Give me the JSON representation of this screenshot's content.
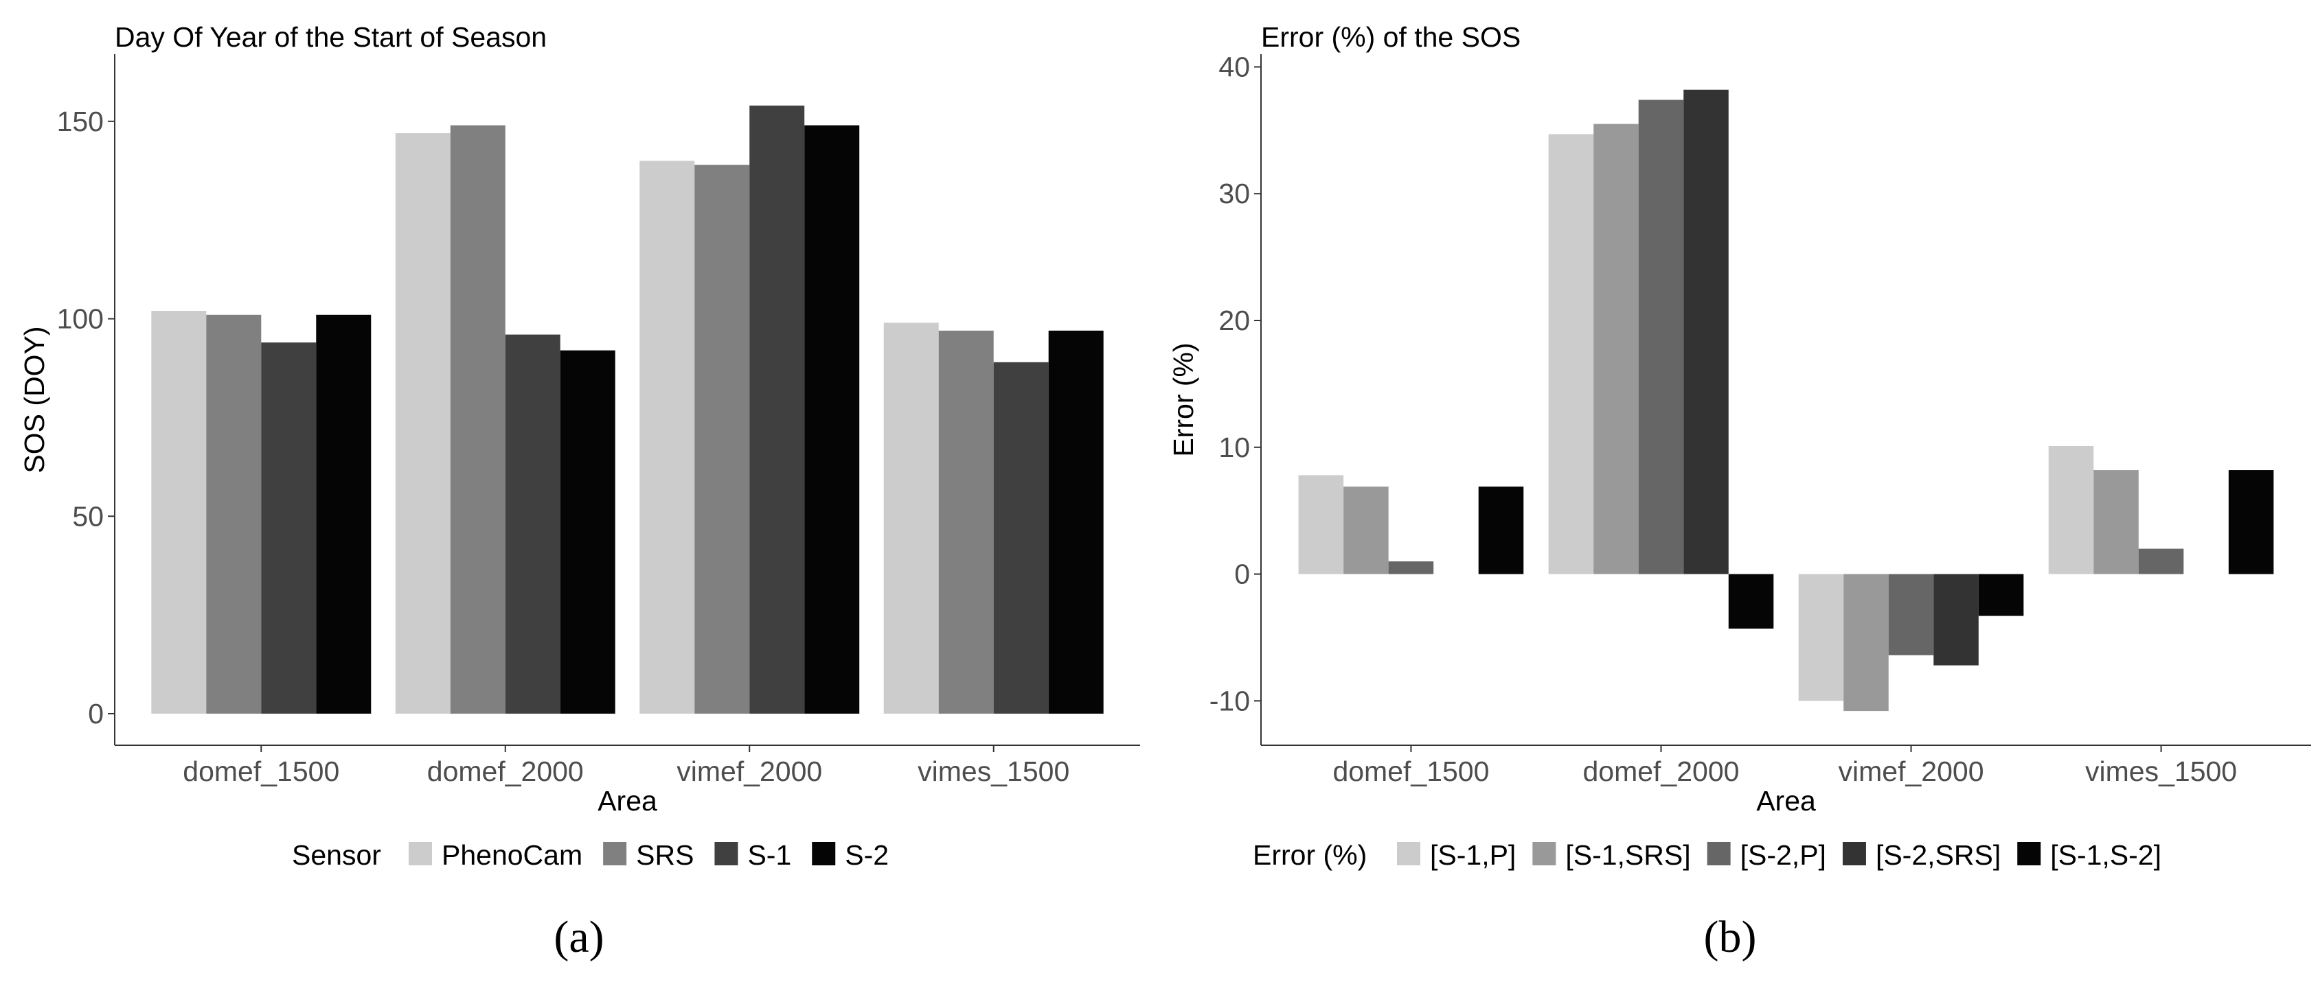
{
  "chart_data": [
    {
      "type": "bar",
      "title": "Day Of Year of the Start of Season",
      "xlabel": "Area",
      "ylabel": "SOS (DOY)",
      "categories": [
        "domef_1500",
        "domef_2000",
        "vimef_2000",
        "vimes_1500"
      ],
      "ylim": [
        -8,
        167
      ],
      "yticks": [
        0,
        50,
        100,
        150
      ],
      "yticklabels": [
        "0",
        "50",
        "100",
        "150"
      ],
      "grid": false,
      "legend_title": "Sensor",
      "legend_position": "bottom",
      "series": [
        {
          "name": "PhenoCam",
          "color": "#cccccc",
          "values": [
            102,
            147,
            140,
            99
          ]
        },
        {
          "name": "SRS",
          "color": "#808080",
          "values": [
            101,
            149,
            139,
            97
          ]
        },
        {
          "name": "S-1",
          "color": "#404040",
          "values": [
            94,
            96,
            154,
            89
          ]
        },
        {
          "name": "S-2",
          "color": "#050505",
          "values": [
            101,
            92,
            149,
            97
          ]
        }
      ],
      "caption": "(a)"
    },
    {
      "type": "bar",
      "title": "Error (%) of the SOS",
      "xlabel": "Area",
      "ylabel": "Error (%)",
      "categories": [
        "domef_1500",
        "domef_2000",
        "vimef_2000",
        "vimes_1500"
      ],
      "ylim": [
        -13.5,
        41
      ],
      "yticks": [
        -10,
        0,
        10,
        20,
        30,
        40
      ],
      "yticklabels": [
        "-10",
        "0",
        "10",
        "20",
        "30",
        "40"
      ],
      "grid": false,
      "legend_title": "Error (%)",
      "legend_position": "bottom",
      "series": [
        {
          "name": "[S-1,P]",
          "color": "#cccccc",
          "values": [
            7.8,
            34.7,
            -10.0,
            10.1
          ]
        },
        {
          "name": "[S-1,SRS]",
          "color": "#999999",
          "values": [
            6.9,
            35.5,
            -10.8,
            8.2
          ]
        },
        {
          "name": "[S-2,P]",
          "color": "#666666",
          "values": [
            1.0,
            37.4,
            -6.4,
            2.0
          ]
        },
        {
          "name": "[S-2,SRS]",
          "color": "#333333",
          "values": [
            0.0,
            38.2,
            -7.2,
            0.0
          ]
        },
        {
          "name": "[S-1,S-2]",
          "color": "#050505",
          "values": [
            6.9,
            -4.3,
            -3.3,
            8.2
          ]
        }
      ],
      "caption": "(b)"
    }
  ]
}
